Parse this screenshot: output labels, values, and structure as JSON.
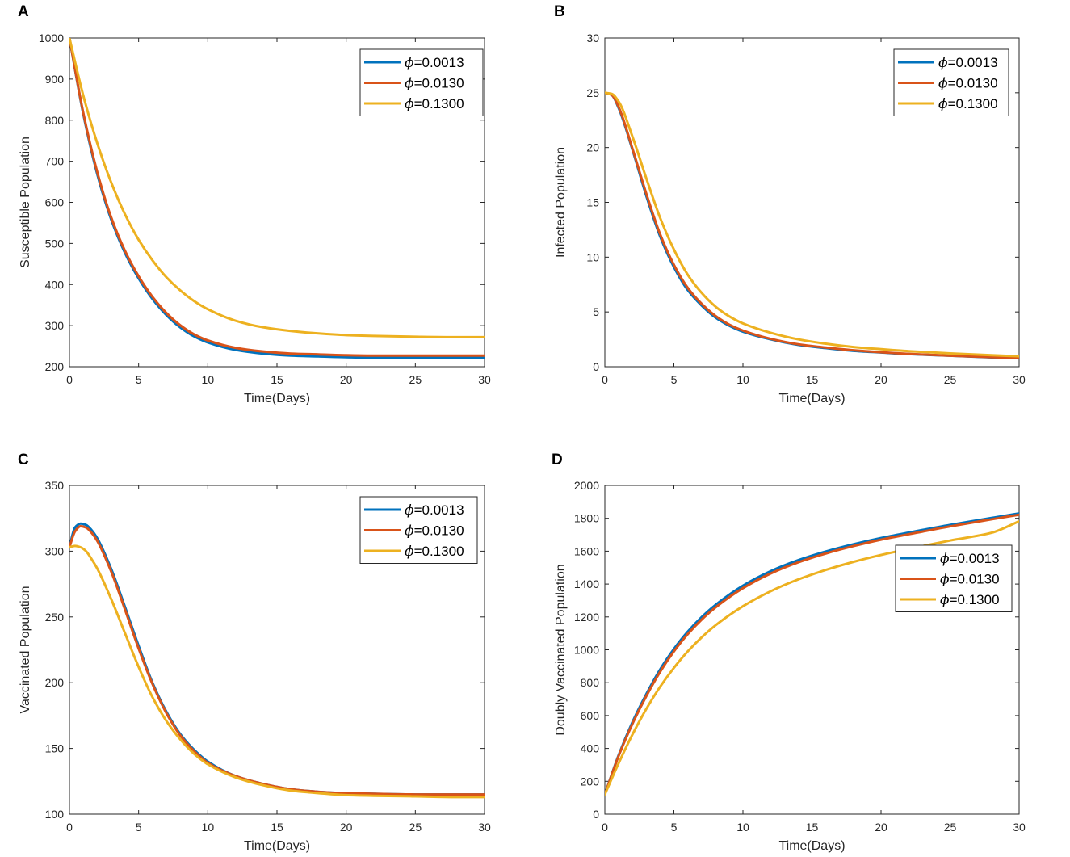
{
  "figure": {
    "legend_symbol": "ϕ",
    "series_colors": [
      "#0072BD",
      "#D95319",
      "#EDB120"
    ]
  },
  "chart_data": [
    {
      "panel": "A",
      "type": "line",
      "xlabel": "Time(Days)",
      "ylabel": "Susceptible Population",
      "xlim": [
        0,
        30
      ],
      "ylim": [
        200,
        1000
      ],
      "xticks": [
        0,
        5,
        10,
        15,
        20,
        25,
        30
      ],
      "yticks": [
        200,
        300,
        400,
        500,
        600,
        700,
        800,
        900,
        1000
      ],
      "legend_position": "top-right",
      "x": [
        0,
        1,
        2,
        3,
        4,
        5,
        6,
        7,
        8,
        9,
        10,
        12,
        14,
        16,
        18,
        20,
        22,
        25,
        28,
        30
      ],
      "series": [
        {
          "name": "=0.0013",
          "color": "#0072BD",
          "values": [
            1000,
            815,
            670,
            560,
            478,
            415,
            365,
            326,
            296,
            274,
            259,
            241,
            232,
            227,
            225,
            223,
            222,
            222,
            222,
            222
          ]
        },
        {
          "name": "=0.0130",
          "color": "#D95319",
          "values": [
            1000,
            818,
            675,
            565,
            483,
            420,
            370,
            331,
            301,
            279,
            264,
            246,
            237,
            232,
            230,
            228,
            227,
            227,
            227,
            227
          ]
        },
        {
          "name": "=0.1300",
          "color": "#EDB120",
          "values": [
            1000,
            860,
            745,
            650,
            572,
            509,
            459,
            418,
            386,
            360,
            340,
            312,
            296,
            287,
            281,
            277,
            275,
            273,
            272,
            272
          ]
        }
      ]
    },
    {
      "panel": "B",
      "type": "line",
      "xlabel": "Time(Days)",
      "ylabel": "Infected Population",
      "xlim": [
        0,
        30
      ],
      "ylim": [
        0,
        30
      ],
      "xticks": [
        0,
        5,
        10,
        15,
        20,
        25,
        30
      ],
      "yticks": [
        0,
        5,
        10,
        15,
        20,
        25,
        30
      ],
      "legend_position": "top-right",
      "x": [
        0,
        0.5,
        1,
        2,
        3,
        4,
        5,
        6,
        7,
        8,
        9,
        10,
        12,
        14,
        16,
        18,
        20,
        22,
        25,
        28,
        30
      ],
      "series": [
        {
          "name": "=0.0013",
          "color": "#0072BD",
          "values": [
            25,
            24.8,
            23.6,
            19.8,
            15.6,
            11.9,
            9.1,
            7.0,
            5.6,
            4.5,
            3.75,
            3.2,
            2.5,
            2.0,
            1.7,
            1.45,
            1.3,
            1.15,
            1.0,
            0.85,
            0.78
          ]
        },
        {
          "name": "=0.0130",
          "color": "#D95319",
          "values": [
            25,
            24.8,
            23.7,
            19.9,
            15.8,
            12.1,
            9.3,
            7.2,
            5.75,
            4.65,
            3.85,
            3.3,
            2.55,
            2.05,
            1.75,
            1.5,
            1.32,
            1.17,
            1.0,
            0.87,
            0.8
          ]
        },
        {
          "name": "=0.1300",
          "color": "#EDB120",
          "values": [
            25,
            24.9,
            24.2,
            21.0,
            17.2,
            13.6,
            10.7,
            8.4,
            6.75,
            5.5,
            4.6,
            3.95,
            3.1,
            2.5,
            2.1,
            1.8,
            1.6,
            1.42,
            1.22,
            1.05,
            0.95
          ]
        }
      ]
    },
    {
      "panel": "C",
      "type": "line",
      "xlabel": "Time(Days)",
      "ylabel": "Vaccinated Population",
      "xlim": [
        0,
        30
      ],
      "ylim": [
        100,
        350
      ],
      "xticks": [
        0,
        5,
        10,
        15,
        20,
        25,
        30
      ],
      "yticks": [
        100,
        150,
        200,
        250,
        300,
        350
      ],
      "legend_position": "top-right",
      "x": [
        0,
        0.4,
        0.8,
        1.2,
        1.6,
        2,
        3,
        4,
        5,
        6,
        7,
        8,
        9,
        10,
        12,
        14,
        16,
        18,
        20,
        22,
        25,
        28,
        30
      ],
      "series": [
        {
          "name": "=0.0013",
          "color": "#0072BD",
          "values": [
            303,
            318,
            321,
            320,
            316,
            310,
            287,
            258,
            228,
            200,
            178,
            161,
            149,
            140,
            129,
            123,
            119,
            117,
            116,
            115.5,
            115,
            115,
            115
          ]
        },
        {
          "name": "=0.0130",
          "color": "#D95319",
          "values": [
            303,
            315,
            319,
            318,
            314,
            308,
            285,
            256,
            226,
            199,
            177,
            160,
            148,
            139,
            129,
            123,
            119,
            117,
            116,
            115.5,
            115,
            115,
            115
          ]
        },
        {
          "name": "=0.1300",
          "color": "#EDB120",
          "values": [
            303,
            304,
            303,
            300,
            294,
            287,
            264,
            238,
            212,
            189,
            171,
            157,
            146,
            138,
            128,
            122,
            118,
            116,
            114.5,
            114,
            113.5,
            113,
            113
          ]
        }
      ]
    },
    {
      "panel": "D",
      "type": "line",
      "xlabel": "Time(Days)",
      "ylabel": "Doubly Vaccinated Population",
      "xlim": [
        0,
        30
      ],
      "ylim": [
        0,
        2000
      ],
      "xticks": [
        0,
        5,
        10,
        15,
        20,
        25,
        30
      ],
      "yticks": [
        0,
        200,
        400,
        600,
        800,
        1000,
        1200,
        1400,
        1600,
        1800,
        2000
      ],
      "legend_position": "right",
      "x": [
        0,
        1,
        2,
        3,
        4,
        5,
        6,
        7,
        8,
        10,
        12,
        14,
        16,
        18,
        20,
        22,
        25,
        28,
        30
      ],
      "series": [
        {
          "name": "=0.0013",
          "color": "#0072BD",
          "values": [
            120,
            360,
            560,
            730,
            880,
            1005,
            1110,
            1198,
            1272,
            1390,
            1478,
            1545,
            1598,
            1642,
            1680,
            1713,
            1760,
            1802,
            1830
          ]
        },
        {
          "name": "=0.0130",
          "color": "#D95319",
          "values": [
            120,
            355,
            550,
            718,
            866,
            990,
            1095,
            1183,
            1257,
            1375,
            1464,
            1532,
            1586,
            1631,
            1670,
            1703,
            1751,
            1794,
            1822
          ]
        },
        {
          "name": "=0.1300",
          "color": "#EDB120",
          "values": [
            120,
            310,
            485,
            640,
            775,
            890,
            990,
            1075,
            1148,
            1265,
            1356,
            1428,
            1486,
            1535,
            1577,
            1614,
            1665,
            1712,
            1782
          ]
        }
      ]
    }
  ]
}
